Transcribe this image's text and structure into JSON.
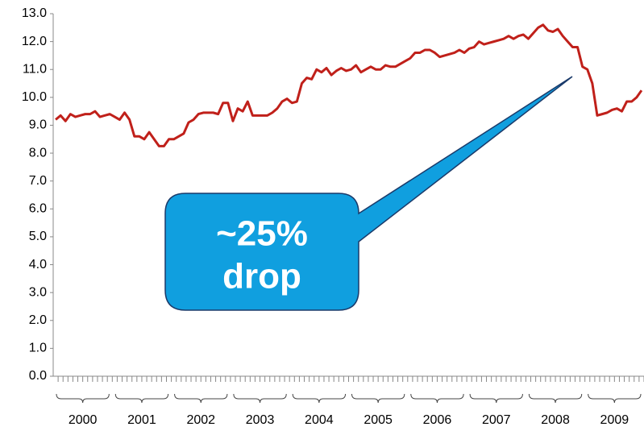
{
  "chart_data": {
    "type": "line",
    "categories": [
      null,
      null,
      null,
      null,
      null,
      null,
      null,
      null,
      null,
      null,
      null,
      null,
      null,
      null,
      null,
      null,
      null,
      null,
      null,
      null,
      null,
      null,
      null,
      null,
      null,
      null,
      null,
      null,
      null,
      null,
      null,
      null,
      null,
      null,
      null,
      null,
      null,
      null,
      null,
      null,
      null,
      null,
      null,
      null,
      null,
      null,
      null,
      null,
      null,
      null,
      null,
      null,
      null,
      null,
      null,
      null,
      null,
      null,
      null,
      null,
      null,
      null,
      null,
      null,
      null,
      null,
      null,
      null,
      null,
      null,
      null,
      null,
      null,
      null,
      null,
      null,
      null,
      null,
      null,
      null,
      null,
      null,
      null,
      null,
      null,
      null,
      null,
      null,
      null,
      null,
      null,
      null,
      null,
      null,
      null,
      null,
      null,
      null,
      null,
      null,
      null,
      null,
      null,
      null,
      null,
      null,
      null,
      null,
      null,
      null,
      null,
      null,
      null,
      null,
      null,
      null,
      null,
      null,
      null,
      null
    ],
    "category_groups": [
      "2000",
      "2001",
      "2002",
      "2003",
      "2004",
      "2005",
      "2006",
      "2007",
      "2008",
      "2009"
    ],
    "series": [
      {
        "color": "#c0201a",
        "values": [
          9.2,
          9.35,
          9.15,
          9.4,
          9.3,
          9.35,
          9.4,
          9.4,
          9.5,
          9.3,
          9.35,
          9.4,
          9.3,
          9.2,
          9.45,
          9.2,
          8.6,
          8.6,
          8.5,
          8.75,
          8.5,
          8.25,
          8.25,
          8.5,
          8.5,
          8.6,
          8.7,
          9.1,
          9.2,
          9.4,
          9.45,
          9.45,
          9.45,
          9.4,
          9.8,
          9.8,
          9.15,
          9.6,
          9.5,
          9.85,
          9.35,
          9.35,
          9.35,
          9.35,
          9.45,
          9.6,
          9.85,
          9.95,
          9.8,
          9.85,
          10.5,
          10.7,
          10.65,
          11.0,
          10.9,
          11.05,
          10.8,
          10.95,
          11.05,
          10.95,
          11.0,
          11.15,
          10.9,
          11.0,
          11.1,
          11.0,
          11.0,
          11.15,
          11.1,
          11.1,
          11.2,
          11.3,
          11.4,
          11.6,
          11.6,
          11.7,
          11.7,
          11.6,
          11.45,
          11.5,
          11.55,
          11.6,
          11.7,
          11.6,
          11.75,
          11.8,
          12.0,
          11.9,
          11.95,
          12.0,
          12.05,
          12.1,
          12.2,
          12.1,
          12.2,
          12.25,
          12.1,
          12.3,
          12.5,
          12.6,
          12.4,
          12.35,
          12.45,
          12.2,
          12.0,
          11.8,
          11.8,
          11.1,
          11.0,
          10.5,
          9.35,
          9.4,
          9.45,
          9.55,
          9.6,
          9.5,
          9.85,
          9.85,
          10.0,
          10.25
        ]
      }
    ],
    "ylim": [
      0,
      13
    ],
    "yticks": [
      {
        "value": 0,
        "label": "0.0"
      },
      {
        "value": 1,
        "label": "1.0"
      },
      {
        "value": 2,
        "label": "2.0"
      },
      {
        "value": 3,
        "label": "3.0"
      },
      {
        "value": 4,
        "label": "4.0"
      },
      {
        "value": 5,
        "label": "5.0"
      },
      {
        "value": 6,
        "label": "6.0"
      },
      {
        "value": 7,
        "label": "7.0"
      },
      {
        "value": 8,
        "label": "8.0"
      },
      {
        "value": 9,
        "label": "9.0"
      },
      {
        "value": 10,
        "label": "10.0"
      },
      {
        "value": 11,
        "label": "11.0"
      },
      {
        "value": 12,
        "label": "12.0"
      },
      {
        "value": 13,
        "label": "13.0"
      }
    ],
    "annotation": [
      "~25%",
      "drop"
    ]
  }
}
